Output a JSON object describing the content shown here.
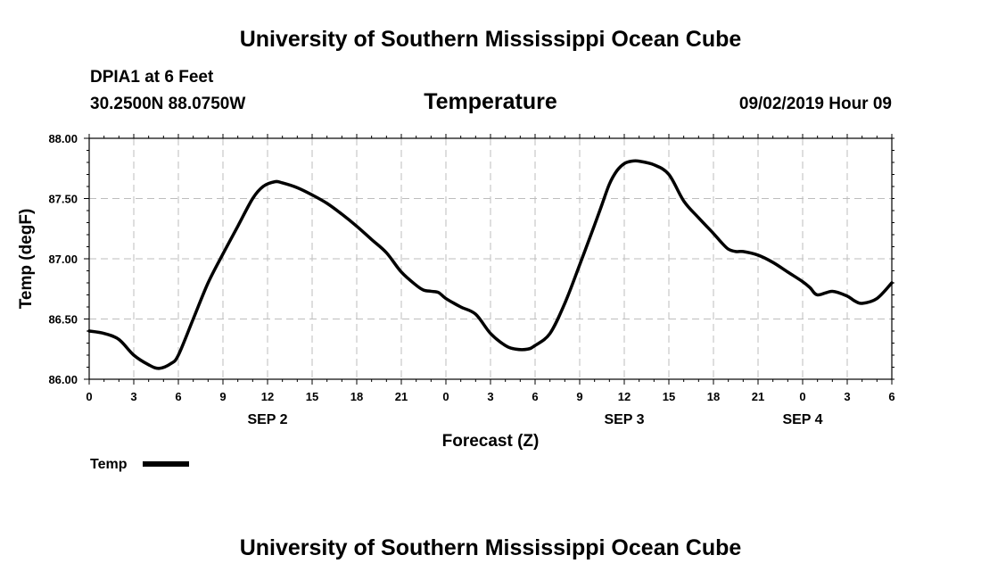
{
  "header": {
    "title": "University of Southern Mississippi Ocean Cube",
    "station": "DPIA1 at 6 Feet",
    "coords": "30.2500N 88.0750W",
    "variable": "Temperature",
    "forecast_time": "09/02/2019 Hour 09"
  },
  "footer": {
    "title": "University of Southern Mississippi Ocean Cube"
  },
  "chart_data": {
    "type": "line",
    "xlabel": "Forecast (Z)",
    "ylabel": "Temp (degF)",
    "x_unit": "hours",
    "xlim": [
      0,
      54
    ],
    "ylim": [
      86.0,
      88.0
    ],
    "y_ticks": [
      "86.00",
      "86.50",
      "87.00",
      "87.50",
      "88.00"
    ],
    "x_ticks": [
      "0",
      "3",
      "6",
      "9",
      "12",
      "15",
      "18",
      "21",
      "0",
      "3",
      "6",
      "9",
      "12",
      "15",
      "18",
      "21",
      "0",
      "3",
      "6"
    ],
    "date_labels": [
      {
        "label": "SEP 2",
        "hour": 12
      },
      {
        "label": "SEP 3",
        "hour": 36
      },
      {
        "label": "SEP 4",
        "hour": 48
      }
    ],
    "grid": true,
    "legend": {
      "position": "bottom-left",
      "entries": [
        "Temp"
      ]
    },
    "series": [
      {
        "name": "Temp",
        "color": "#000000",
        "x": [
          0,
          1,
          2,
          3,
          4,
          4.7,
          5.5,
          6,
          7,
          8,
          9,
          10,
          11,
          11.7,
          12.5,
          13,
          14,
          15,
          16,
          17,
          18,
          19,
          20,
          21,
          22,
          22.5,
          23,
          23.5,
          24,
          25,
          26,
          27,
          28,
          28.7,
          29.5,
          30,
          31,
          32,
          33,
          34,
          34.5,
          35,
          35.5,
          36,
          36.5,
          37,
          38,
          39,
          40,
          41,
          42,
          42.5,
          43,
          43.5,
          44,
          45,
          46,
          47,
          48,
          48.5,
          49,
          50,
          51,
          51.5,
          52,
          53,
          54
        ],
        "y": [
          86.4,
          86.38,
          86.33,
          86.2,
          86.12,
          86.09,
          86.13,
          86.2,
          86.5,
          86.8,
          87.04,
          87.27,
          87.5,
          87.6,
          87.64,
          87.63,
          87.59,
          87.53,
          87.46,
          87.37,
          87.27,
          87.16,
          87.05,
          86.89,
          86.78,
          86.74,
          86.73,
          86.72,
          86.67,
          86.6,
          86.54,
          86.38,
          86.28,
          86.25,
          86.25,
          86.28,
          86.38,
          86.63,
          86.95,
          87.28,
          87.45,
          87.62,
          87.73,
          87.79,
          87.81,
          87.81,
          87.78,
          87.7,
          87.48,
          87.34,
          87.21,
          87.14,
          87.08,
          87.06,
          87.06,
          87.03,
          86.97,
          86.89,
          86.81,
          86.76,
          86.7,
          86.73,
          86.69,
          86.65,
          86.63,
          86.67,
          86.8
        ]
      }
    ]
  }
}
